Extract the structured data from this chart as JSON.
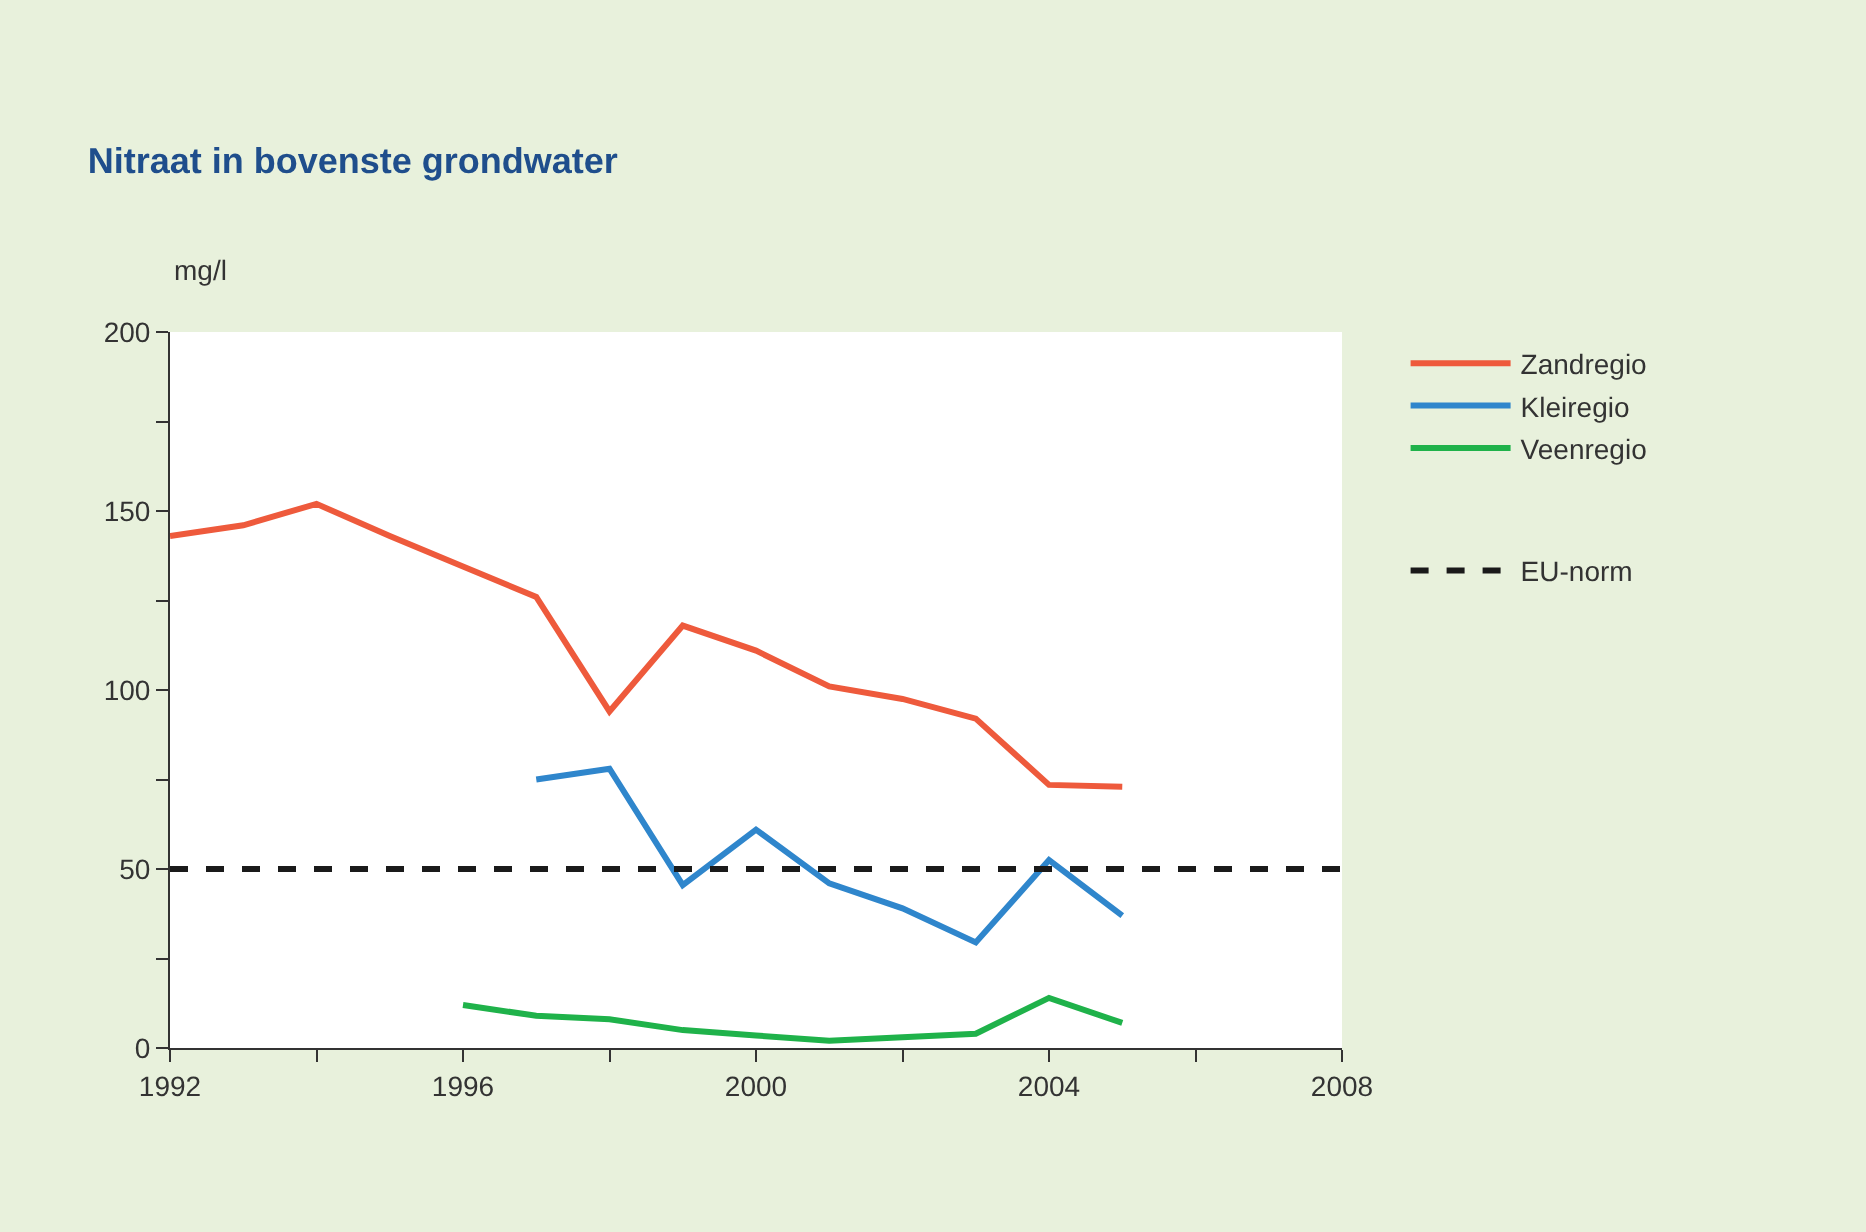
{
  "chart_data": {
    "type": "line",
    "title": "Nitraat in bovenste grondwater",
    "ylabel": "mg/l",
    "xlim": [
      1992,
      2008
    ],
    "xticks": [
      1992,
      {
        "value": 1994,
        "label": null
      },
      1996,
      {
        "value": 1998,
        "label": null
      },
      2000,
      {
        "value": 2002,
        "label": null
      },
      2004,
      {
        "value": 2006,
        "label": null
      },
      2008
    ],
    "ylim": [
      0,
      200
    ],
    "yticks": [
      0,
      {
        "value": 25,
        "label": null
      },
      50,
      {
        "value": 75,
        "label": null
      },
      100,
      {
        "value": 125,
        "label": null
      },
      150,
      {
        "value": 175,
        "label": null
      },
      200
    ],
    "series": [
      {
        "name": "Zandregio",
        "color": "#ee5a3c",
        "x": [
          1992,
          1993,
          1994,
          1995,
          1996,
          1997,
          1998,
          1999,
          2000,
          2001,
          2002,
          2003,
          2004,
          2005
        ],
        "values": [
          143,
          146,
          152,
          143,
          134.5,
          126,
          94,
          118,
          111,
          101,
          97.5,
          92,
          73.5,
          73
        ]
      },
      {
        "name": "Kleiregio",
        "color": "#2f86cc",
        "x": [
          1997,
          1998,
          1999,
          2000,
          2001,
          2002,
          2003,
          2004,
          2005
        ],
        "values": [
          75,
          78,
          45.5,
          61,
          46,
          39,
          29.5,
          52.5,
          37
        ]
      },
      {
        "name": "Veenregio",
        "color": "#1fb24a",
        "x": [
          1996,
          1997,
          1998,
          1999,
          2000,
          2001,
          2002,
          2003,
          2004,
          2005
        ],
        "values": [
          12,
          9,
          8,
          5,
          3.5,
          2,
          3,
          4,
          14,
          7
        ]
      }
    ],
    "ref_lines": [
      {
        "axis": "y",
        "value": 50,
        "label": "EU-norm",
        "color": "#1a1a1a",
        "line_style": "dashed"
      }
    ],
    "legend": "right",
    "marker": "none",
    "line_style": "solid"
  }
}
